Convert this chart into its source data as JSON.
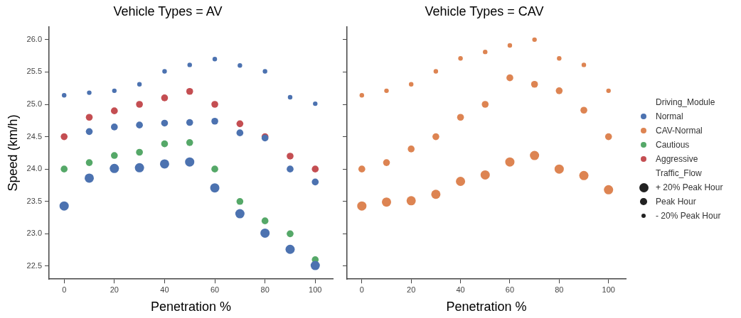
{
  "chart_data": [
    {
      "type": "bubble",
      "title": "Vehicle Types = AV",
      "xlabel": "Penetration %",
      "ylabel": "Speed (km/h)",
      "xlim": [
        -6,
        107
      ],
      "xticks": [
        0,
        20,
        40,
        60,
        80,
        100
      ],
      "ylim": [
        22.3,
        26.2
      ],
      "yticks": [
        22.5,
        {
          "value": 23,
          "label": "23.0"
        },
        23.5,
        {
          "value": 24,
          "label": "24.0"
        },
        24.5,
        {
          "value": 25,
          "label": "25.0"
        },
        25.5,
        {
          "value": 26,
          "label": "26.0"
        }
      ],
      "grid": false,
      "marker": "circle",
      "legend": "right",
      "series": [
        {
          "name": "Normal",
          "color": "#4c72b0",
          "x": [
            0,
            10,
            20,
            30,
            40,
            50,
            60,
            70,
            80,
            90,
            100,
            10,
            20,
            30,
            40,
            50,
            60,
            70,
            80,
            90,
            100,
            0,
            10,
            20,
            30,
            40,
            50,
            60,
            70,
            80,
            90,
            100
          ],
          "values": [
            25.14,
            25.18,
            25.21,
            25.31,
            25.51,
            25.61,
            25.7,
            25.6,
            25.51,
            25.11,
            25.01,
            24.58,
            24.65,
            24.68,
            24.71,
            24.72,
            24.74,
            24.56,
            24.48,
            24.0,
            23.8,
            23.43,
            23.86,
            24.01,
            24.02,
            24.08,
            24.11,
            23.71,
            23.31,
            23.01,
            22.76,
            22.51
          ],
          "sizes": [
            0.17,
            0.17,
            0.17,
            0.17,
            0.17,
            0.17,
            0.17,
            0.17,
            0.17,
            0.17,
            0.17,
            0.55,
            0.55,
            0.55,
            0.55,
            0.55,
            0.55,
            0.55,
            0.55,
            0.55,
            0.55,
            1,
            1,
            1,
            1,
            1,
            1,
            1,
            1,
            1,
            1,
            1
          ]
        },
        {
          "name": "Cautious",
          "color": "#55a868",
          "x": [
            0,
            10,
            20,
            30,
            40,
            50,
            60,
            70,
            80,
            90,
            100
          ],
          "values": [
            24.0,
            24.1,
            24.21,
            24.26,
            24.39,
            24.41,
            24.0,
            23.5,
            23.2,
            23.0,
            22.6
          ],
          "sizes": [
            0.55,
            0.55,
            0.55,
            0.55,
            0.55,
            0.55,
            0.55,
            0.55,
            0.55,
            0.55,
            0.55
          ]
        },
        {
          "name": "Aggressive",
          "color": "#c44e52",
          "x": [
            0,
            10,
            20,
            30,
            40,
            50,
            60,
            70,
            80,
            90,
            100
          ],
          "values": [
            24.5,
            24.8,
            24.9,
            25.0,
            25.1,
            25.2,
            25.0,
            24.7,
            24.5,
            24.2,
            24.0
          ],
          "sizes": [
            0.55,
            0.55,
            0.55,
            0.55,
            0.55,
            0.55,
            0.55,
            0.55,
            0.55,
            0.55,
            0.55
          ]
        }
      ]
    },
    {
      "type": "bubble",
      "title": "Vehicle Types = CAV",
      "xlabel": "Penetration %",
      "xlim": [
        -6,
        107
      ],
      "xticks": [
        0,
        20,
        40,
        60,
        80,
        100
      ],
      "ylim": [
        22.3,
        26.2
      ],
      "yticks": [
        {
          "value": 22.5,
          "label": null
        },
        {
          "value": 23,
          "label": null
        },
        {
          "value": 23.5,
          "label": null
        },
        {
          "value": 24,
          "label": null
        },
        {
          "value": 24.5,
          "label": null
        },
        {
          "value": 25,
          "label": null
        },
        {
          "value": 25.5,
          "label": null
        },
        {
          "value": 26,
          "label": null
        }
      ],
      "tick_labels": "x",
      "grid": false,
      "marker": "circle",
      "legend": "right",
      "legend_title": "Driving_Module",
      "annotations": [
        "Traffic_Flow"
      ],
      "size_legend": [
        {
          "value": 1,
          "label": "+ 20% Peak Hour"
        },
        {
          "value": 0.55,
          "label": "Peak Hour"
        },
        {
          "value": 0.17,
          "label": "- 20% Peak Hour"
        }
      ],
      "series": [
        {
          "name": "CAV-Normal",
          "color": "#dd8452",
          "x": [
            0,
            10,
            20,
            30,
            40,
            50,
            60,
            70,
            80,
            90,
            100,
            0,
            10,
            20,
            30,
            40,
            50,
            60,
            70,
            80,
            90,
            100,
            0,
            10,
            20,
            30,
            40,
            50,
            60,
            70,
            80,
            90,
            100
          ],
          "values": [
            25.14,
            25.21,
            25.31,
            25.51,
            25.71,
            25.81,
            25.91,
            26.0,
            25.71,
            25.61,
            25.21,
            24.0,
            24.1,
            24.31,
            24.5,
            24.8,
            25.0,
            25.41,
            25.31,
            25.21,
            24.91,
            24.5,
            23.43,
            23.49,
            23.51,
            23.61,
            23.81,
            23.91,
            24.11,
            24.21,
            24.0,
            23.9,
            23.68
          ],
          "sizes": [
            0.17,
            0.17,
            0.17,
            0.17,
            0.17,
            0.17,
            0.17,
            0.17,
            0.17,
            0.17,
            0.17,
            0.55,
            0.55,
            0.55,
            0.55,
            0.55,
            0.55,
            0.55,
            0.55,
            0.55,
            0.55,
            0.55,
            1,
            1,
            1,
            1,
            1,
            1,
            1,
            1,
            1,
            1,
            1
          ]
        }
      ]
    }
  ]
}
